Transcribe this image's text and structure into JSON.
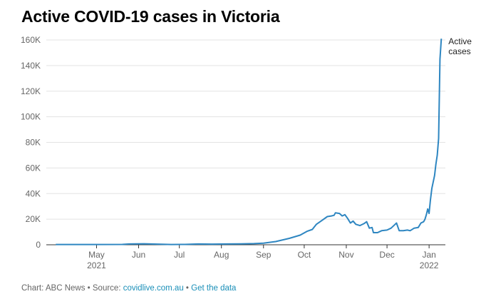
{
  "chart_data": {
    "type": "line",
    "title": "Active COVID-19 cases in Victoria",
    "xlabel": "",
    "ylabel": "",
    "ylim": [
      0,
      160000
    ],
    "y_ticks": [
      {
        "value": 0,
        "label": "0"
      },
      {
        "value": 20000,
        "label": "20K"
      },
      {
        "value": 40000,
        "label": "40K"
      },
      {
        "value": 60000,
        "label": "60K"
      },
      {
        "value": 80000,
        "label": "80K"
      },
      {
        "value": 100000,
        "label": "100K"
      },
      {
        "value": 120000,
        "label": "120K"
      },
      {
        "value": 140000,
        "label": "140K"
      },
      {
        "value": 160000,
        "label": "160K"
      }
    ],
    "x_range": [
      "2021-03-25",
      "2022-01-13"
    ],
    "x_ticks": [
      {
        "date": "2021-05-01",
        "label": "May",
        "sublabel": "2021"
      },
      {
        "date": "2021-06-01",
        "label": "Jun",
        "sublabel": ""
      },
      {
        "date": "2021-07-01",
        "label": "Jul",
        "sublabel": ""
      },
      {
        "date": "2021-08-01",
        "label": "Aug",
        "sublabel": ""
      },
      {
        "date": "2021-09-01",
        "label": "Sep",
        "sublabel": ""
      },
      {
        "date": "2021-10-01",
        "label": "Oct",
        "sublabel": ""
      },
      {
        "date": "2021-11-01",
        "label": "Nov",
        "sublabel": ""
      },
      {
        "date": "2021-12-01",
        "label": "Dec",
        "sublabel": ""
      },
      {
        "date": "2022-01-01",
        "label": "Jan",
        "sublabel": "2022"
      }
    ],
    "grid": true,
    "series": [
      {
        "name": "Active cases",
        "color": "#2e86c1",
        "points": [
          [
            "2021-04-01",
            200
          ],
          [
            "2021-05-01",
            200
          ],
          [
            "2021-05-20",
            300
          ],
          [
            "2021-05-25",
            600
          ],
          [
            "2021-06-05",
            800
          ],
          [
            "2021-06-15",
            500
          ],
          [
            "2021-06-25",
            200
          ],
          [
            "2021-07-05",
            300
          ],
          [
            "2021-07-15",
            600
          ],
          [
            "2021-07-25",
            500
          ],
          [
            "2021-08-05",
            600
          ],
          [
            "2021-08-15",
            700
          ],
          [
            "2021-08-25",
            900
          ],
          [
            "2021-09-01",
            1200
          ],
          [
            "2021-09-10",
            2500
          ],
          [
            "2021-09-20",
            5000
          ],
          [
            "2021-09-28",
            7500
          ],
          [
            "2021-10-03",
            10500
          ],
          [
            "2021-10-07",
            12000
          ],
          [
            "2021-10-10",
            16000
          ],
          [
            "2021-10-14",
            19000
          ],
          [
            "2021-10-18",
            22000
          ],
          [
            "2021-10-21",
            22500
          ],
          [
            "2021-10-23",
            23000
          ],
          [
            "2021-10-24",
            25000
          ],
          [
            "2021-10-27",
            24500
          ],
          [
            "2021-10-29",
            22500
          ],
          [
            "2021-10-31",
            23500
          ],
          [
            "2021-11-02",
            20500
          ],
          [
            "2021-11-04",
            17000
          ],
          [
            "2021-11-06",
            18500
          ],
          [
            "2021-11-08",
            16000
          ],
          [
            "2021-11-11",
            15000
          ],
          [
            "2021-11-14",
            16500
          ],
          [
            "2021-11-16",
            18000
          ],
          [
            "2021-11-18",
            13000
          ],
          [
            "2021-11-20",
            13500
          ],
          [
            "2021-11-21",
            9500
          ],
          [
            "2021-11-24",
            9500
          ],
          [
            "2021-11-27",
            11000
          ],
          [
            "2021-12-01",
            11500
          ],
          [
            "2021-12-04",
            13000
          ],
          [
            "2021-12-07",
            16000
          ],
          [
            "2021-12-08",
            17000
          ],
          [
            "2021-12-10",
            11000
          ],
          [
            "2021-12-13",
            11000
          ],
          [
            "2021-12-16",
            11500
          ],
          [
            "2021-12-18",
            11000
          ],
          [
            "2021-12-21",
            13000
          ],
          [
            "2021-12-24",
            13500
          ],
          [
            "2021-12-26",
            17000
          ],
          [
            "2021-12-28",
            18000
          ],
          [
            "2021-12-29",
            20000
          ],
          [
            "2021-12-30",
            23500
          ],
          [
            "2021-12-31",
            28000
          ],
          [
            "2022-01-01",
            24500
          ],
          [
            "2022-01-02",
            35000
          ],
          [
            "2022-01-03",
            44000
          ],
          [
            "2022-01-04",
            49000
          ],
          [
            "2022-01-05",
            54000
          ],
          [
            "2022-01-06",
            63000
          ],
          [
            "2022-01-07",
            70000
          ],
          [
            "2022-01-08",
            83000
          ],
          [
            "2022-01-09",
            145000
          ],
          [
            "2022-01-10",
            161000
          ]
        ]
      }
    ]
  },
  "footer": {
    "prefix": "Chart: ABC News • Source: ",
    "source_link": "covidlive.com.au",
    "separator": " • ",
    "data_link": "Get the data"
  }
}
